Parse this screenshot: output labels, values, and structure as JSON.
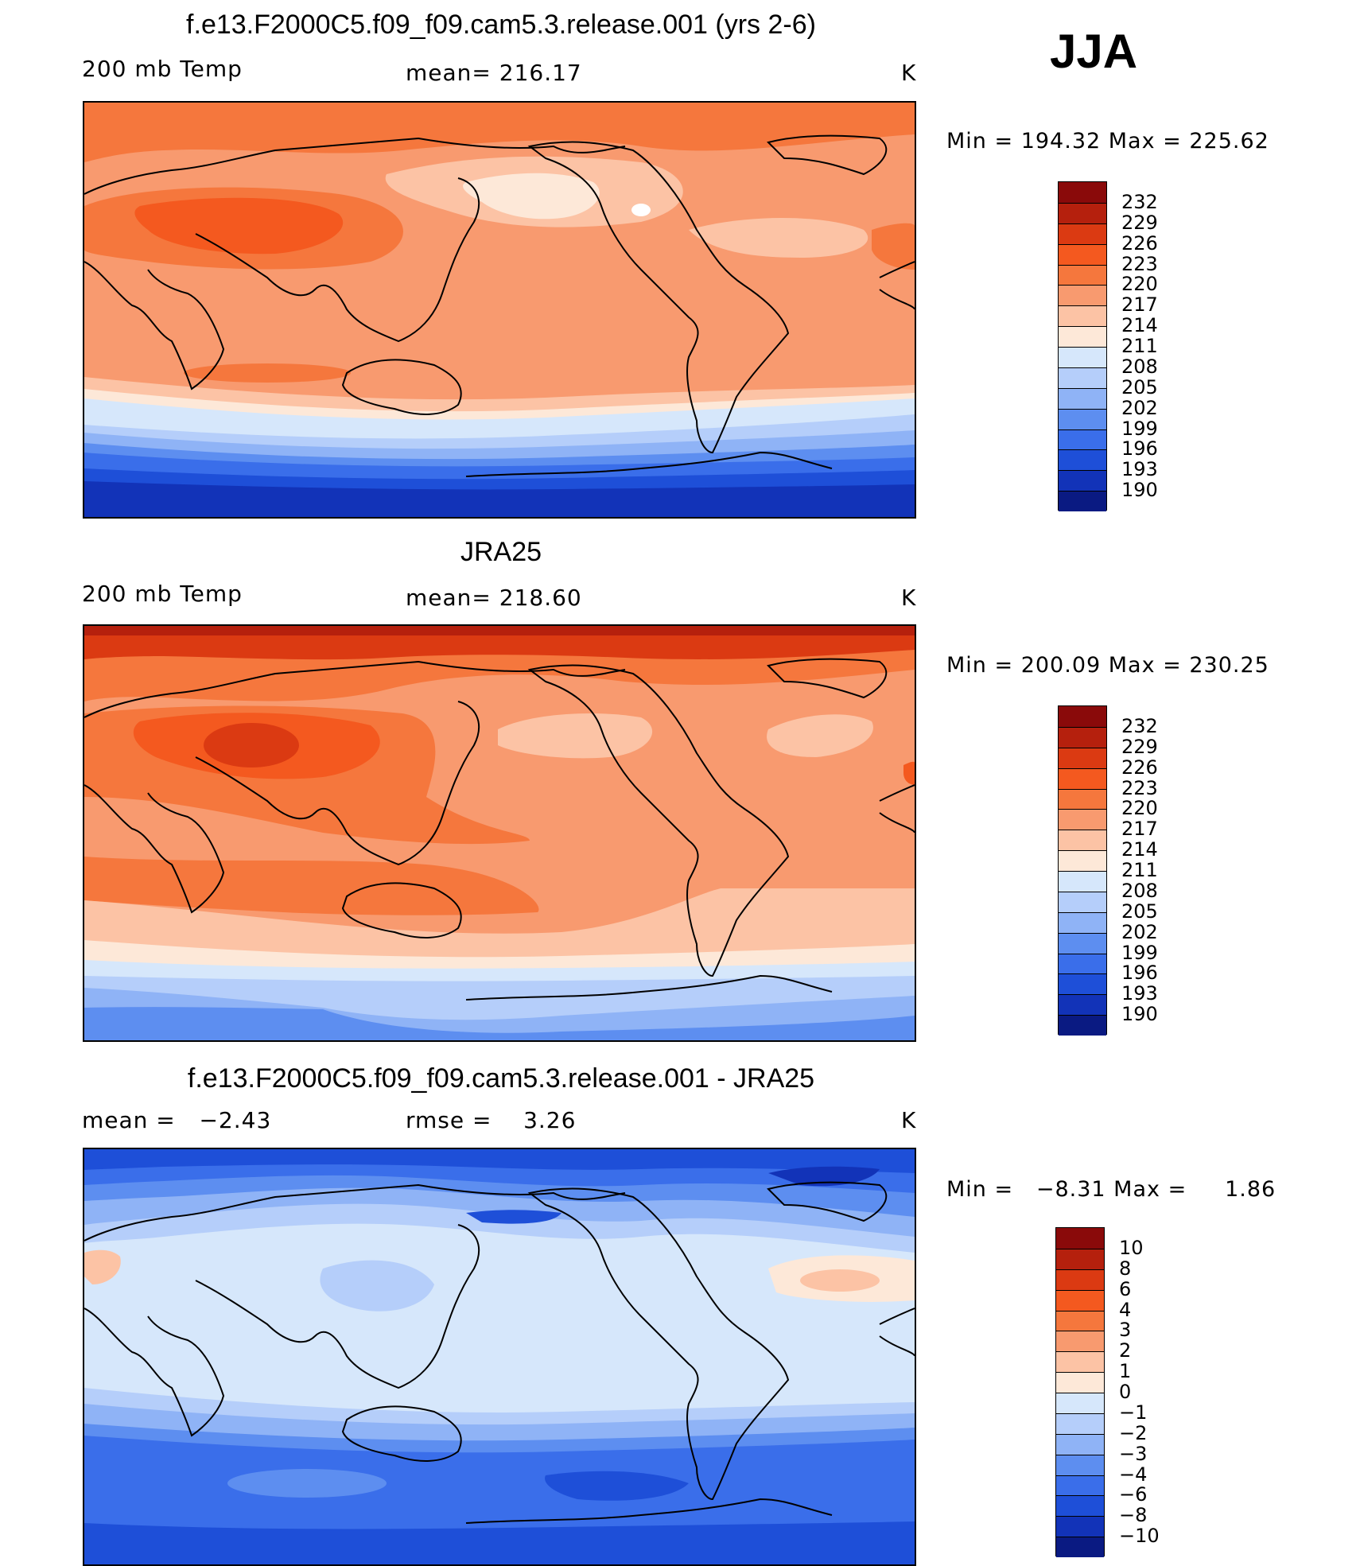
{
  "season": "JJA",
  "units": "K",
  "panels": [
    {
      "id": "model",
      "title": "f.e13.F2000C5.f09_f09.cam5.3.release.001 (yrs 2-6)",
      "left_label": "200 mb Temp",
      "center_label": "mean= 216.17",
      "units": "K",
      "min_max": "Min = 194.32 Max = 225.62",
      "colorbar_ticks": [
        "232",
        "229",
        "226",
        "223",
        "220",
        "217",
        "214",
        "211",
        "208",
        "205",
        "202",
        "199",
        "196",
        "193",
        "190"
      ]
    },
    {
      "id": "obs",
      "title": "JRA25",
      "left_label": "200 mb Temp",
      "center_label": "mean= 218.60",
      "units": "K",
      "min_max": "Min = 200.09 Max = 230.25",
      "colorbar_ticks": [
        "232",
        "229",
        "226",
        "223",
        "220",
        "217",
        "214",
        "211",
        "208",
        "205",
        "202",
        "199",
        "196",
        "193",
        "190"
      ]
    },
    {
      "id": "diff",
      "title": "f.e13.F2000C5.f09_f09.cam5.3.release.001 - JRA25",
      "left_label": "mean =   −2.43",
      "center_label": "rmse =    3.26",
      "units": "K",
      "min_max": "Min =   −8.31 Max =     1.86",
      "colorbar_ticks": [
        "10",
        "8",
        "6",
        "4",
        "3",
        "2",
        "1",
        "0",
        "−1",
        "−2",
        "−3",
        "−4",
        "−6",
        "−8",
        "−10"
      ]
    }
  ],
  "colorbar_colors": [
    "#8a0a0a",
    "#b5200d",
    "#db3a12",
    "#f4591f",
    "#f5773d",
    "#f89a6f",
    "#fcc3a5",
    "#fde8d8",
    "#d6e7fb",
    "#b5cefa",
    "#8fb3f6",
    "#5d8ef0",
    "#3a6eea",
    "#1e4fd8",
    "#1233b8",
    "#0a1a82"
  ]
}
